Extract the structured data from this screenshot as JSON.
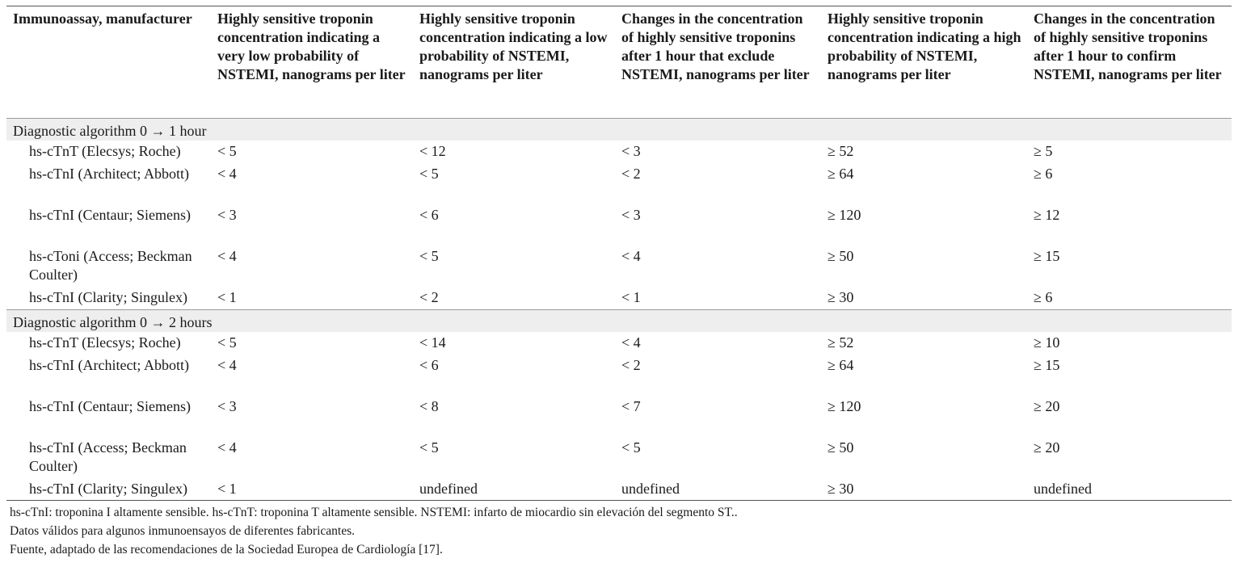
{
  "table": {
    "headers": [
      "Immunoassay, manufacturer",
      "Highly sensitive troponin concentration indicating a very low probability of NSTEMI, nanograms per liter",
      "Highly sensitive troponin concentration indicating a low probability of NSTEMI, nanograms per liter",
      "Changes in the concentration of highly sensitive troponins after 1 hour that exclude NSTEMI, nanograms per liter",
      "Highly sensitive troponin concentration indicating a high probability of NSTEMI, nanograms per liter",
      "Changes in the concentration of highly sensitive troponins after 1 hour to confirm NSTEMI, nanograms per liter"
    ],
    "sections": [
      {
        "title": "Diagnostic algorithm 0 → 1 hour",
        "rows": [
          [
            "hs-cTnT (Elecsys; Roche)",
            "< 5",
            "< 12",
            "< 3",
            "≥ 52",
            "≥ 5"
          ],
          [
            "hs-cTnI (Architect; Abbott)",
            "< 4",
            "< 5",
            "< 2",
            "≥ 64",
            "≥ 6"
          ],
          [
            "hs-cTnI (Centaur; Siemens)",
            "< 3",
            "< 6",
            "< 3",
            "≥ 120",
            "≥ 12"
          ],
          [
            "hs-cToni (Access; Beckman Coulter)",
            "< 4",
            "< 5",
            "< 4",
            "≥ 50",
            "≥ 15"
          ],
          [
            "hs-cTnI (Clarity; Singulex)",
            "< 1",
            "< 2",
            "< 1",
            "≥ 30",
            "≥ 6"
          ]
        ]
      },
      {
        "title": "Diagnostic algorithm 0 → 2 hours",
        "rows": [
          [
            "hs-cTnT (Elecsys; Roche)",
            "< 5",
            "< 14",
            "< 4",
            "≥ 52",
            "≥ 10"
          ],
          [
            "hs-cTnI (Architect; Abbott)",
            "< 4",
            "< 6",
            "< 2",
            "≥ 64",
            "≥ 15"
          ],
          [
            "hs-cTnI (Centaur; Siemens)",
            "< 3",
            "< 8",
            "< 7",
            "≥ 120",
            "≥ 20"
          ],
          [
            "hs-cTnI (Access; Beckman Coulter)",
            "< 4",
            "< 5",
            "< 5",
            "≥ 50",
            "≥ 20"
          ],
          [
            "hs-cTnI (Clarity; Singulex)",
            "< 1",
            "undefined",
            "undefined",
            "≥ 30",
            "undefined"
          ]
        ]
      }
    ]
  },
  "footnotes": [
    "hs-cTnI: troponina I altamente sensible. hs-cTnT: troponina T altamente sensible. NSTEMI: infarto de miocardio sin elevación del segmento ST..",
    "Datos válidos para algunos inmunoensayos de diferentes fabricantes.",
    "Fuente, adaptado de las recomendaciones de la Sociedad Europea de Cardiología [17]."
  ]
}
